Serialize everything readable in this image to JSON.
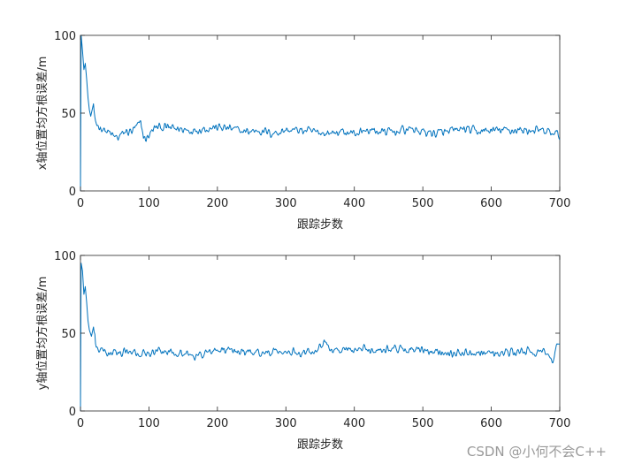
{
  "watermark": "CSDN @小何不会C++",
  "chart_data": [
    {
      "type": "line",
      "ylabel": "x轴位置均方根误差/m",
      "xlabel": "跟踪步数",
      "xlim": [
        0,
        700
      ],
      "ylim": [
        0,
        100
      ],
      "xticks": [
        0,
        100,
        200,
        300,
        400,
        500,
        600,
        700
      ],
      "yticks": [
        0,
        50,
        100
      ],
      "grid": false,
      "series_color": "#0072BD",
      "x_step": 1,
      "keypoints": [
        [
          0,
          0
        ],
        [
          1,
          100
        ],
        [
          3,
          90
        ],
        [
          5,
          78
        ],
        [
          7,
          82
        ],
        [
          9,
          72
        ],
        [
          11,
          60
        ],
        [
          13,
          52
        ],
        [
          15,
          48
        ],
        [
          17,
          52
        ],
        [
          19,
          56
        ],
        [
          21,
          46
        ],
        [
          24,
          43
        ],
        [
          28,
          41
        ],
        [
          33,
          40
        ],
        [
          38,
          38
        ],
        [
          43,
          37
        ],
        [
          48,
          35
        ],
        [
          55,
          34
        ],
        [
          65,
          38
        ],
        [
          75,
          38
        ],
        [
          82,
          41
        ],
        [
          88,
          44
        ],
        [
          92,
          35
        ],
        [
          96,
          33
        ],
        [
          100,
          36
        ],
        [
          110,
          41
        ],
        [
          120,
          41
        ],
        [
          140,
          40
        ],
        [
          160,
          39
        ],
        [
          180,
          40
        ],
        [
          200,
          41
        ],
        [
          220,
          40
        ],
        [
          240,
          38
        ],
        [
          260,
          39
        ],
        [
          280,
          37
        ],
        [
          300,
          39
        ],
        [
          320,
          39
        ],
        [
          340,
          38
        ],
        [
          360,
          37
        ],
        [
          380,
          38
        ],
        [
          400,
          37
        ],
        [
          420,
          39
        ],
        [
          440,
          38
        ],
        [
          460,
          38
        ],
        [
          480,
          40
        ],
        [
          500,
          38
        ],
        [
          520,
          37
        ],
        [
          540,
          38
        ],
        [
          560,
          40
        ],
        [
          580,
          38
        ],
        [
          600,
          39
        ],
        [
          620,
          39
        ],
        [
          640,
          39
        ],
        [
          660,
          39
        ],
        [
          680,
          38
        ],
        [
          700,
          36
        ]
      ],
      "noise_amplitude": 3.6
    },
    {
      "type": "line",
      "ylabel": "y轴位置均方根误差/m",
      "xlabel": "跟踪步数",
      "xlim": [
        0,
        700
      ],
      "ylim": [
        0,
        100
      ],
      "xticks": [
        0,
        100,
        200,
        300,
        400,
        500,
        600,
        700
      ],
      "yticks": [
        0,
        50,
        100
      ],
      "grid": false,
      "series_color": "#0072BD",
      "x_step": 1,
      "keypoints": [
        [
          0,
          0
        ],
        [
          1,
          95
        ],
        [
          3,
          90
        ],
        [
          5,
          75
        ],
        [
          7,
          80
        ],
        [
          9,
          70
        ],
        [
          11,
          58
        ],
        [
          13,
          52
        ],
        [
          16,
          48
        ],
        [
          19,
          54
        ],
        [
          22,
          44
        ],
        [
          25,
          40
        ],
        [
          30,
          39
        ],
        [
          36,
          38
        ],
        [
          42,
          37
        ],
        [
          50,
          37
        ],
        [
          60,
          38
        ],
        [
          80,
          37
        ],
        [
          100,
          37
        ],
        [
          120,
          38
        ],
        [
          140,
          38
        ],
        [
          160,
          36
        ],
        [
          170,
          35
        ],
        [
          180,
          37
        ],
        [
          200,
          39
        ],
        [
          220,
          39
        ],
        [
          240,
          38
        ],
        [
          260,
          38
        ],
        [
          280,
          37
        ],
        [
          300,
          38
        ],
        [
          320,
          38
        ],
        [
          340,
          39
        ],
        [
          355,
          44
        ],
        [
          370,
          39
        ],
        [
          390,
          39
        ],
        [
          410,
          40
        ],
        [
          430,
          39
        ],
        [
          450,
          40
        ],
        [
          470,
          40
        ],
        [
          490,
          39
        ],
        [
          510,
          38
        ],
        [
          530,
          38
        ],
        [
          550,
          37
        ],
        [
          570,
          38
        ],
        [
          590,
          38
        ],
        [
          610,
          37
        ],
        [
          640,
          38
        ],
        [
          660,
          38
        ],
        [
          680,
          37
        ],
        [
          690,
          33
        ],
        [
          695,
          40
        ],
        [
          700,
          41
        ]
      ],
      "noise_amplitude": 3.4
    }
  ]
}
